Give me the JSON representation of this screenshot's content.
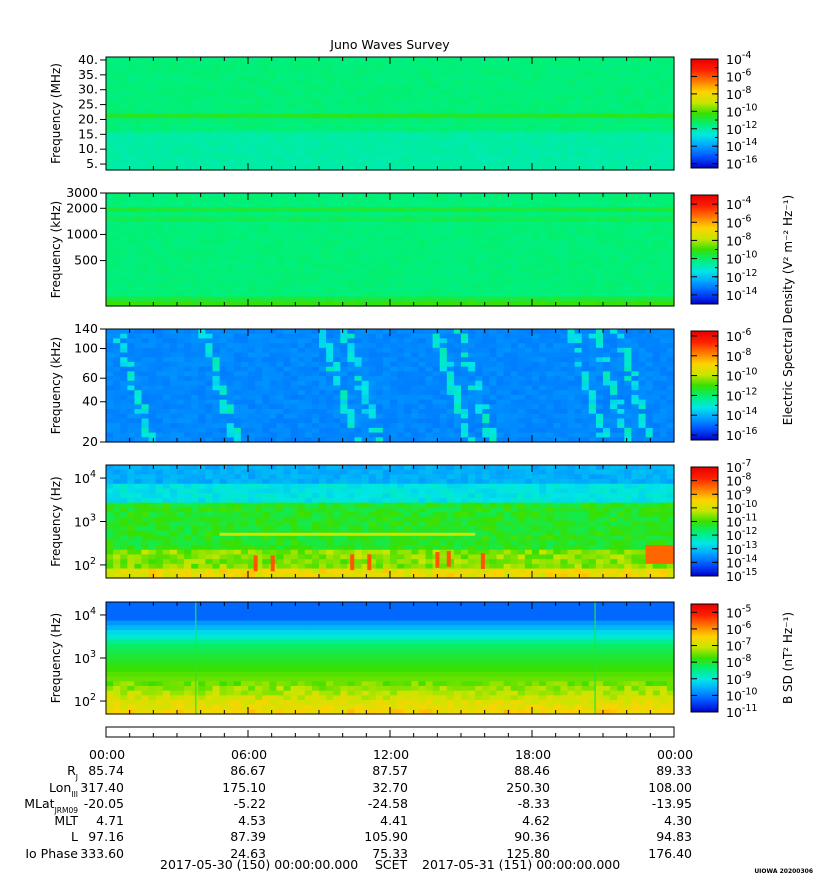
{
  "title": "Juno Waves Survey",
  "colors": {
    "background": "#ffffff",
    "colormap": [
      "#0000c8",
      "#0050ff",
      "#00a0ff",
      "#00e6e6",
      "#00f078",
      "#38e000",
      "#c8e600",
      "#ffd200",
      "#ff7800",
      "#ff1e00",
      "#e60000"
    ]
  },
  "chart_data": [
    {
      "type": "heatmap",
      "panel": 1,
      "ylabel": "Frequency (MHz)",
      "yticks": [
        "5.",
        "10.",
        "15.",
        "20.",
        "25.",
        "30.",
        "35.",
        "40."
      ],
      "ylim": [
        3,
        41
      ],
      "scale": "linear",
      "colorbar_ticks": [
        "-4",
        "-6",
        "-8",
        "-10",
        "-12",
        "-14",
        "-16"
      ],
      "colorbar_range": [
        -16.5,
        -4
      ],
      "features": [
        {
          "description": "steady narrowband emission near 21 MHz",
          "freq": 21
        }
      ]
    },
    {
      "type": "heatmap",
      "panel": 2,
      "ylabel": "Frequency (kHz)",
      "yticks": [
        "3000",
        "2000",
        "1000",
        "500"
      ],
      "ylim": [
        150,
        3000
      ],
      "scale": "log",
      "colorbar_ticks": [
        "-4",
        "-6",
        "-8",
        "-10",
        "-12",
        "-14"
      ],
      "colorbar_range": [
        -15,
        -3
      ],
      "features": [
        {
          "description": "narrow bands near 1.6-1.9 MHz",
          "freq": 1700
        }
      ]
    },
    {
      "type": "heatmap",
      "panel": 3,
      "ylabel": "Frequency (kHz)",
      "yticks": [
        "140",
        "100",
        "60",
        "40",
        "20"
      ],
      "ylim": [
        20,
        140
      ],
      "scale": "log",
      "colorbar_ticks": [
        "-6",
        "-8",
        "-10",
        "-12",
        "-14",
        "-16"
      ],
      "colorbar_range": [
        -16.5,
        -5.5
      ],
      "shared_colorbar_label": "Electric Spectral Density (V² m⁻² Hz⁻¹)"
    },
    {
      "type": "heatmap",
      "panel": 4,
      "ylabel": "Frequency (Hz)",
      "yticks_exp": [
        {
          "base": "10",
          "exp": "4"
        },
        {
          "base": "10",
          "exp": "3"
        },
        {
          "base": "10",
          "exp": "2"
        }
      ],
      "ylim": [
        50,
        20000
      ],
      "scale": "log",
      "colorbar_ticks": [
        "-7",
        "-8",
        "-9",
        "-10",
        "-11",
        "-12",
        "-13",
        "-14",
        "-15"
      ],
      "colorbar_range": [
        -15,
        -7
      ]
    },
    {
      "type": "heatmap",
      "panel": 5,
      "ylabel": "Frequency (Hz)",
      "yticks_exp": [
        {
          "base": "10",
          "exp": "4"
        },
        {
          "base": "10",
          "exp": "3"
        },
        {
          "base": "10",
          "exp": "2"
        }
      ],
      "ylim": [
        50,
        20000
      ],
      "scale": "log",
      "colorbar_ticks": [
        "-5",
        "-6",
        "-7",
        "-8",
        "-9",
        "-10",
        "-11"
      ],
      "colorbar_range": [
        -11,
        -4.5
      ],
      "colorbar_label": "B SD (nT² Hz⁻¹)"
    }
  ],
  "time_axis": {
    "tick_labels": [
      "00:00",
      "06:00",
      "12:00",
      "18:00",
      "00:00"
    ]
  },
  "ephemeris": {
    "rows": [
      {
        "label": "R",
        "sub": "J",
        "values": [
          "85.74",
          "86.67",
          "87.57",
          "88.46",
          "89.33"
        ]
      },
      {
        "label": "Lon",
        "sub": "III",
        "values": [
          "317.40",
          "175.10",
          "32.70",
          "250.30",
          "108.00"
        ]
      },
      {
        "label": "MLat",
        "sub": "JRM09",
        "values": [
          "-20.05",
          "-5.22",
          "-24.58",
          "-8.33",
          "-13.95"
        ]
      },
      {
        "label": "MLT",
        "sub": "",
        "values": [
          "4.71",
          "4.53",
          "4.41",
          "4.62",
          "4.30"
        ]
      },
      {
        "label": "L",
        "sub": "",
        "values": [
          "97.16",
          "87.39",
          "105.90",
          "90.36",
          "94.83"
        ]
      },
      {
        "label": "Io Phase",
        "sub": "",
        "values": [
          "333.60",
          "24.63",
          "75.33",
          "125.80",
          "176.40"
        ]
      }
    ]
  },
  "footer": {
    "start": "2017-05-30 (150) 00:00:00.000",
    "mid": "SCET",
    "end": "2017-05-31 (151) 00:00:00.000"
  },
  "credit": "UIOWA 20200306"
}
